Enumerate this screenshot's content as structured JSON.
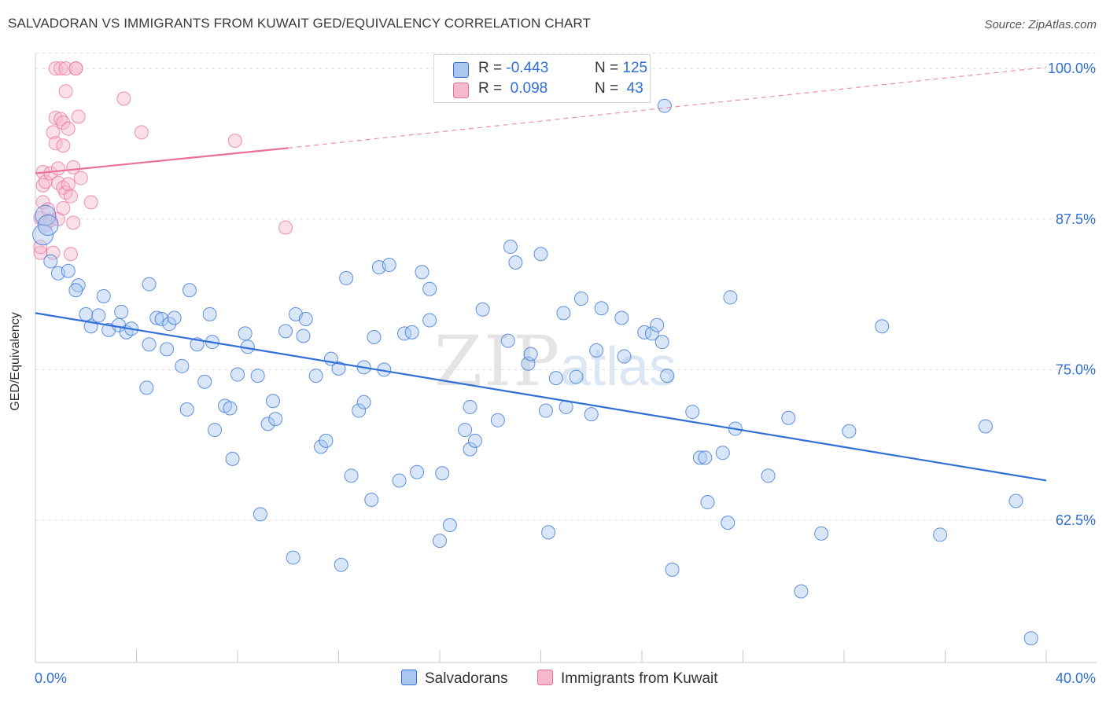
{
  "header": {
    "title": "SALVADORAN VS IMMIGRANTS FROM KUWAIT GED/EQUIVALENCY CORRELATION CHART",
    "source": "Source: ZipAtlas.com"
  },
  "legend_top": {
    "rows": [
      {
        "r_label": "R =",
        "r_value": "-0.443",
        "n_label": "N =",
        "n_value": "125"
      },
      {
        "r_label": "R =",
        "r_value": " 0.098",
        "n_label": "N =",
        "n_value": " 43"
      }
    ]
  },
  "legend_bottom": {
    "items": [
      {
        "label": "Salvadorans"
      },
      {
        "label": "Immigrants from Kuwait"
      }
    ]
  },
  "watermark": {
    "zip": "ZIP",
    "atlas": "atlas"
  },
  "colors": {
    "blue": "#2f6fd6",
    "blue_fill": "#a9c7ef",
    "pink": "#e8709a",
    "pink_fill": "#f6b8cc",
    "grid": "#dddddd"
  },
  "chart_data": {
    "type": "scatter",
    "title": "SALVADORAN VS IMMIGRANTS FROM KUWAIT GED/EQUIVALENCY CORRELATION CHART",
    "xlabel": "",
    "ylabel": "GED/Equivalency",
    "xlim": [
      0,
      40
    ],
    "ylim": [
      50.5,
      101
    ],
    "x_tick_labels": [
      "0.0%",
      "40.0%"
    ],
    "y_ticks": [
      62.5,
      75.0,
      87.5,
      100.0
    ],
    "y_tick_labels": [
      "62.5%",
      "75.0%",
      "87.5%",
      "100.0%"
    ],
    "grid": true,
    "legend_position": "top-center",
    "series": [
      {
        "name": "Salvadorans",
        "color": "#2f6fd6",
        "R": -0.443,
        "N": 125,
        "trend": {
          "x": [
            0,
            40
          ],
          "y": [
            79.7,
            65.8
          ]
        },
        "points": [
          [
            0.3,
            86.2
          ],
          [
            0.4,
            87.8
          ],
          [
            0.5,
            87.0
          ],
          [
            0.6,
            84.0
          ],
          [
            0.9,
            83.0
          ],
          [
            1.3,
            83.2
          ],
          [
            1.7,
            82.0
          ],
          [
            1.6,
            81.6
          ],
          [
            2.7,
            81.1
          ],
          [
            2.0,
            79.6
          ],
          [
            2.2,
            78.6
          ],
          [
            2.5,
            79.5
          ],
          [
            2.9,
            78.3
          ],
          [
            3.3,
            78.7
          ],
          [
            3.4,
            79.8
          ],
          [
            3.6,
            78.1
          ],
          [
            3.8,
            78.4
          ],
          [
            4.4,
            73.5
          ],
          [
            4.5,
            82.1
          ],
          [
            4.5,
            77.1
          ],
          [
            4.8,
            79.3
          ],
          [
            5.0,
            79.2
          ],
          [
            5.2,
            76.7
          ],
          [
            5.3,
            78.8
          ],
          [
            5.5,
            79.3
          ],
          [
            5.8,
            75.3
          ],
          [
            6.0,
            71.7
          ],
          [
            6.1,
            81.6
          ],
          [
            6.4,
            77.1
          ],
          [
            6.7,
            74.0
          ],
          [
            6.9,
            79.6
          ],
          [
            7.0,
            77.3
          ],
          [
            7.1,
            70.0
          ],
          [
            7.5,
            72.0
          ],
          [
            7.7,
            71.8
          ],
          [
            7.8,
            67.6
          ],
          [
            8.0,
            74.6
          ],
          [
            8.3,
            78.0
          ],
          [
            8.4,
            76.9
          ],
          [
            8.8,
            74.5
          ],
          [
            8.9,
            63.0
          ],
          [
            9.2,
            70.5
          ],
          [
            9.4,
            72.4
          ],
          [
            9.5,
            70.9
          ],
          [
            9.9,
            78.2
          ],
          [
            10.3,
            79.6
          ],
          [
            10.2,
            59.4
          ],
          [
            10.7,
            79.2
          ],
          [
            10.6,
            77.8
          ],
          [
            11.1,
            74.5
          ],
          [
            11.3,
            68.6
          ],
          [
            11.5,
            69.1
          ],
          [
            11.7,
            75.9
          ],
          [
            12.0,
            75.1
          ],
          [
            12.1,
            58.8
          ],
          [
            12.3,
            82.6
          ],
          [
            12.5,
            66.2
          ],
          [
            12.8,
            71.6
          ],
          [
            13.0,
            72.3
          ],
          [
            13.0,
            75.2
          ],
          [
            13.3,
            64.2
          ],
          [
            13.4,
            77.7
          ],
          [
            13.6,
            83.5
          ],
          [
            13.8,
            75.0
          ],
          [
            14.0,
            83.7
          ],
          [
            14.4,
            65.8
          ],
          [
            14.6,
            78.0
          ],
          [
            14.9,
            78.1
          ],
          [
            15.1,
            66.5
          ],
          [
            15.3,
            83.1
          ],
          [
            15.6,
            79.1
          ],
          [
            15.6,
            81.7
          ],
          [
            16.0,
            60.8
          ],
          [
            16.1,
            66.4
          ],
          [
            16.4,
            62.1
          ],
          [
            17.2,
            68.4
          ],
          [
            17.0,
            70.0
          ],
          [
            17.4,
            69.1
          ],
          [
            17.2,
            71.9
          ],
          [
            17.7,
            80.0
          ],
          [
            18.3,
            70.8
          ],
          [
            18.7,
            77.4
          ],
          [
            18.8,
            85.2
          ],
          [
            19.0,
            83.9
          ],
          [
            19.5,
            75.5
          ],
          [
            19.6,
            76.3
          ],
          [
            20.0,
            84.6
          ],
          [
            20.2,
            71.6
          ],
          [
            20.3,
            61.5
          ],
          [
            20.6,
            74.3
          ],
          [
            20.9,
            79.7
          ],
          [
            21.0,
            71.9
          ],
          [
            21.4,
            74.4
          ],
          [
            21.6,
            80.9
          ],
          [
            22.0,
            71.3
          ],
          [
            22.2,
            76.6
          ],
          [
            22.4,
            80.1
          ],
          [
            23.2,
            79.3
          ],
          [
            23.3,
            76.1
          ],
          [
            24.1,
            78.1
          ],
          [
            24.4,
            78.0
          ],
          [
            24.6,
            78.7
          ],
          [
            24.8,
            77.3
          ],
          [
            25.0,
            74.5
          ],
          [
            25.2,
            58.4
          ],
          [
            26.0,
            71.5
          ],
          [
            26.3,
            67.7
          ],
          [
            26.5,
            67.7
          ],
          [
            26.6,
            64.0
          ],
          [
            27.2,
            68.1
          ],
          [
            27.4,
            62.3
          ],
          [
            27.5,
            81.0
          ],
          [
            27.7,
            70.1
          ],
          [
            29.0,
            66.2
          ],
          [
            29.8,
            71.0
          ],
          [
            30.3,
            56.6
          ],
          [
            31.1,
            61.4
          ],
          [
            32.2,
            69.9
          ],
          [
            33.5,
            78.6
          ],
          [
            35.8,
            61.3
          ],
          [
            37.6,
            70.3
          ],
          [
            38.8,
            64.1
          ],
          [
            39.4,
            52.7
          ],
          [
            24.9,
            96.9
          ]
        ]
      },
      {
        "name": "Immigrants from Kuwait",
        "color": "#e8709a",
        "R": 0.098,
        "N": 43,
        "trend": {
          "x": [
            0,
            10
          ],
          "y": [
            91.3,
            93.4
          ]
        },
        "trend_dashed": {
          "x": [
            10,
            40
          ],
          "y": [
            93.4,
            100.1
          ]
        },
        "points": [
          [
            0.2,
            84.7
          ],
          [
            0.2,
            85.2
          ],
          [
            0.2,
            87.6
          ],
          [
            0.3,
            88.9
          ],
          [
            0.3,
            90.3
          ],
          [
            0.3,
            91.4
          ],
          [
            0.4,
            90.6
          ],
          [
            0.4,
            87.0
          ],
          [
            0.5,
            88.3
          ],
          [
            0.6,
            87.4
          ],
          [
            0.6,
            91.3
          ],
          [
            0.7,
            84.7
          ],
          [
            0.7,
            94.7
          ],
          [
            0.8,
            95.9
          ],
          [
            0.8,
            93.8
          ],
          [
            0.8,
            100.0
          ],
          [
            0.9,
            91.7
          ],
          [
            0.9,
            87.5
          ],
          [
            0.9,
            90.5
          ],
          [
            1.0,
            95.8
          ],
          [
            1.0,
            100.0
          ],
          [
            1.1,
            88.4
          ],
          [
            1.1,
            90.1
          ],
          [
            1.1,
            95.5
          ],
          [
            1.1,
            93.6
          ],
          [
            1.2,
            98.1
          ],
          [
            1.2,
            100.0
          ],
          [
            1.2,
            89.7
          ],
          [
            1.3,
            95.0
          ],
          [
            1.3,
            90.4
          ],
          [
            1.4,
            89.4
          ],
          [
            1.4,
            84.6
          ],
          [
            1.5,
            87.2
          ],
          [
            1.5,
            91.8
          ],
          [
            1.6,
            100.0
          ],
          [
            1.6,
            100.0
          ],
          [
            1.7,
            96.0
          ],
          [
            1.8,
            90.9
          ],
          [
            2.2,
            88.9
          ],
          [
            3.5,
            97.5
          ],
          [
            4.2,
            94.7
          ],
          [
            7.9,
            94.0
          ],
          [
            9.9,
            86.8
          ]
        ]
      }
    ]
  }
}
